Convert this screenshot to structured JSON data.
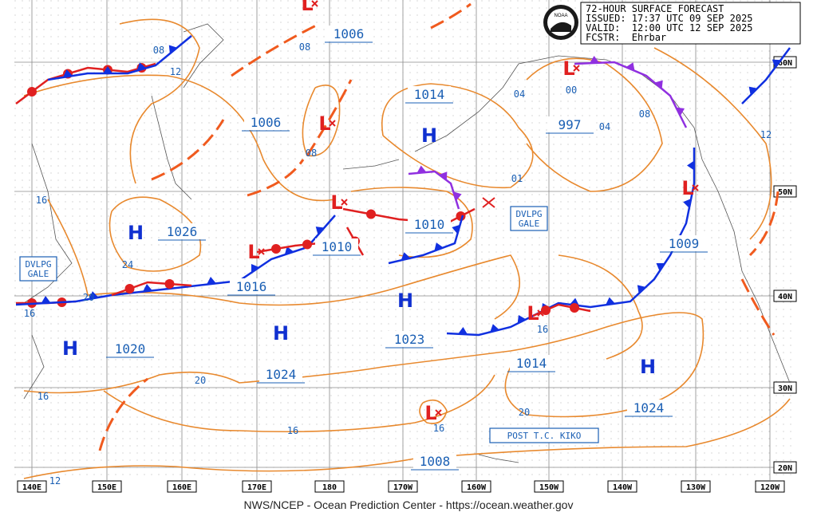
{
  "header": {
    "lines": [
      "72-HOUR SURFACE FORECAST",
      "ISSUED: 17:37 UTC 09 SEP 2025",
      "VALID:  12:00 UTC 12 SEP 2025",
      "FCSTR:  Ehrbar"
    ]
  },
  "logo": "NOAA",
  "footer": "NWS/NCEP - Ocean Prediction Center - https://ocean.weather.gov",
  "centers": [
    "H",
    "H",
    "H",
    "H",
    "H",
    "H",
    "L",
    "L",
    "L",
    "L",
    "L",
    "L",
    "L",
    "L"
  ],
  "pressure_labels": [
    "1006",
    "1006",
    "1014",
    "997",
    "1026",
    "1010",
    "1010",
    "1016",
    "1009",
    "1020",
    "1023",
    "1024",
    "1014",
    "1024",
    "1008"
  ],
  "boxes": [
    {
      "lines": [
        "DVLPG",
        "GALE"
      ]
    },
    {
      "lines": [
        "DVLPG",
        "GALE"
      ]
    },
    {
      "lines": [
        "POST T.C. KIKO"
      ]
    }
  ],
  "isobar_labels": [
    "08",
    "12",
    "08",
    "08",
    "04",
    "00",
    "04",
    "08",
    "12",
    "01",
    "16",
    "24",
    "20",
    "16",
    "16",
    "20",
    "16",
    "16",
    "20",
    "16",
    "12"
  ],
  "longitudes": [
    "140E",
    "150E",
    "160E",
    "170E",
    "180",
    "170W",
    "160W",
    "150W",
    "140W",
    "130W",
    "120W"
  ],
  "latitudes": [
    "60N",
    "50N",
    "40N",
    "30N",
    "20N"
  ]
}
